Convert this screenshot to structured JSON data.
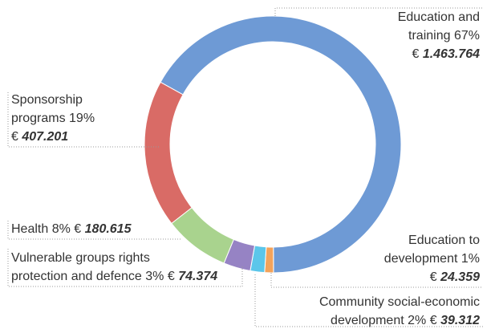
{
  "chart_data": {
    "type": "donut",
    "categories": [
      "Education and\ntraining",
      "Education to\ndevelopment",
      "Community social-economic\ndevelopment",
      "Vulnerable groups rights\nprotection and defence",
      "Health",
      "Sponsorship\nprograms"
    ],
    "values": [
      1463764,
      24359,
      39312,
      74374,
      180615,
      407201
    ],
    "value_labels": [
      "1.463.764",
      "24.359",
      "39.312",
      "74.374",
      "180.615",
      "407.201"
    ],
    "percents": [
      67,
      1,
      2,
      3,
      8,
      19
    ],
    "percent_labels": [
      "67%",
      "1%",
      "2%",
      "3%",
      "8%",
      "19%"
    ],
    "currency": "€",
    "colors": [
      "#6e9ad5",
      "#f3a35b",
      "#5bc6ea",
      "#9683c4",
      "#a9d38e",
      "#d96b66"
    ]
  }
}
